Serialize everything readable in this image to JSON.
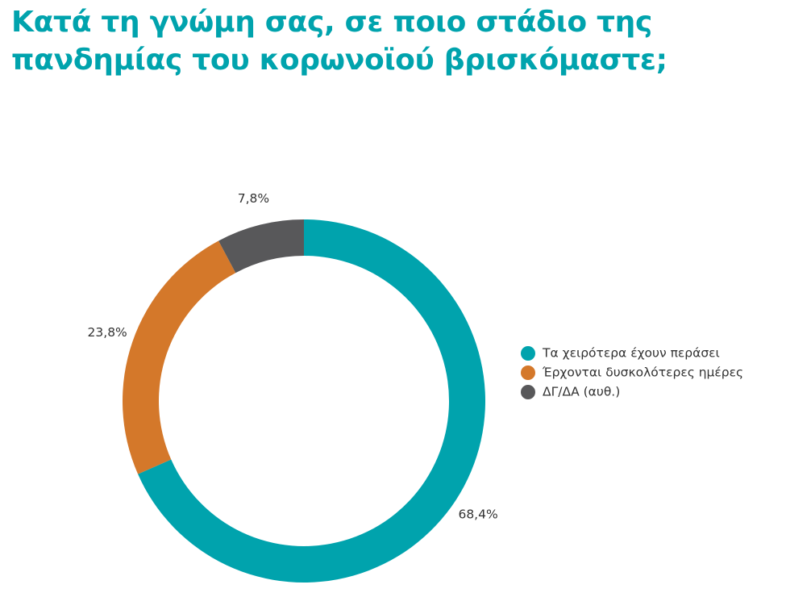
{
  "chart_data": {
    "type": "donut",
    "title": "Κατά τη γνώμη σας, σε ποιο στάδιο της πανδημίας του κορωνοϊού βρισκόμαστε;",
    "categories": [
      "Τα χειρότερα έχουν περάσει",
      "Έρχονται δυσκολότερες ημέρες",
      "ΔΓ/ΔΑ (αυθ.)"
    ],
    "values": [
      68.4,
      23.8,
      7.8
    ],
    "value_labels": [
      "68,4%",
      "23,8%",
      "7,8%"
    ],
    "colors": [
      "#00a3ad",
      "#d4782a",
      "#58585a"
    ],
    "legend": "right"
  }
}
